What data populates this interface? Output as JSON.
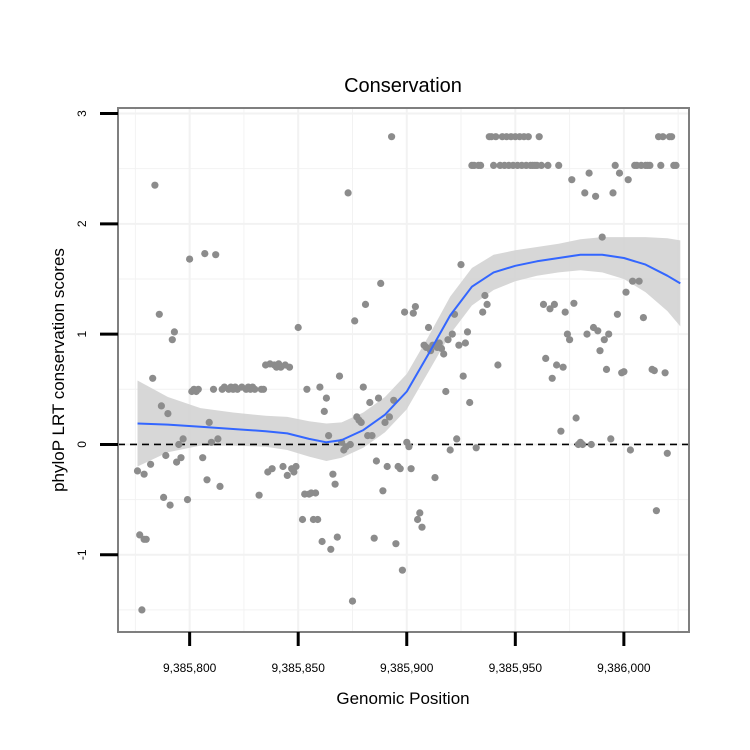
{
  "chart_data": {
    "type": "scatter",
    "title": "Conservation",
    "xlabel": "Genomic Position",
    "ylabel": "phyloP LRT conservation scores",
    "xlim": [
      9385767,
      9386030
    ],
    "ylim": [
      -1.7,
      3.05
    ],
    "x_ticks": [
      9385800,
      9385850,
      9385900,
      9385950,
      9386000
    ],
    "x_tick_labels": [
      "9,385,800",
      "9,385,850",
      "9,385,900",
      "9,385,950",
      "9,386,000"
    ],
    "y_ticks": [
      -1,
      0,
      1,
      2,
      3
    ],
    "y_tick_labels": [
      "-1",
      "0",
      "1",
      "2",
      "3"
    ],
    "reference_line": {
      "y": 0,
      "style": "dashed"
    },
    "colors": {
      "points": "#8c8c8c",
      "smooth": "#3366ff",
      "band": "#d3d3d3",
      "frame": "#7f7f7f",
      "grid": "#f2f2f2"
    },
    "points": [
      [
        9385776,
        -0.24
      ],
      [
        9385777,
        -0.82
      ],
      [
        9385779,
        -0.86
      ],
      [
        9385780,
        -0.86
      ],
      [
        9385778,
        -1.5
      ],
      [
        9385779,
        -0.27
      ],
      [
        9385782,
        -0.18
      ],
      [
        9385783,
        0.6
      ],
      [
        9385784,
        2.35
      ],
      [
        9385786,
        1.18
      ],
      [
        9385787,
        0.35
      ],
      [
        9385788,
        -0.48
      ],
      [
        9385789,
        -0.1
      ],
      [
        9385790,
        0.28
      ],
      [
        9385791,
        -0.55
      ],
      [
        9385792,
        0.95
      ],
      [
        9385793,
        1.02
      ],
      [
        9385794,
        -0.16
      ],
      [
        9385795,
        0.0
      ],
      [
        9385796,
        -0.12
      ],
      [
        9385797,
        0.05
      ],
      [
        9385799,
        -0.5
      ],
      [
        9385800,
        1.68
      ],
      [
        9385801,
        0.48
      ],
      [
        9385802,
        0.5
      ],
      [
        9385803,
        0.48
      ],
      [
        9385804,
        0.5
      ],
      [
        9385806,
        -0.12
      ],
      [
        9385807,
        1.73
      ],
      [
        9385808,
        -0.32
      ],
      [
        9385809,
        0.2
      ],
      [
        9385810,
        0.02
      ],
      [
        9385811,
        0.5
      ],
      [
        9385812,
        1.72
      ],
      [
        9385813,
        0.05
      ],
      [
        9385814,
        -0.38
      ],
      [
        9385815,
        0.5
      ],
      [
        9385816,
        0.52
      ],
      [
        9385818,
        0.5
      ],
      [
        9385819,
        0.52
      ],
      [
        9385820,
        0.5
      ],
      [
        9385821,
        0.52
      ],
      [
        9385822,
        0.5
      ],
      [
        9385824,
        0.52
      ],
      [
        9385826,
        0.5
      ],
      [
        9385827,
        0.52
      ],
      [
        9385828,
        0.5
      ],
      [
        9385829,
        0.52
      ],
      [
        9385830,
        0.5
      ],
      [
        9385832,
        -0.46
      ],
      [
        9385833,
        0.5
      ],
      [
        9385834,
        0.5
      ],
      [
        9385835,
        0.72
      ],
      [
        9385836,
        -0.25
      ],
      [
        9385837,
        0.73
      ],
      [
        9385838,
        -0.22
      ],
      [
        9385839,
        0.72
      ],
      [
        9385840,
        0.7
      ],
      [
        9385841,
        0.73
      ],
      [
        9385842,
        0.7
      ],
      [
        9385843,
        -0.2
      ],
      [
        9385844,
        0.72
      ],
      [
        9385845,
        -0.28
      ],
      [
        9385846,
        0.7
      ],
      [
        9385847,
        -0.22
      ],
      [
        9385848,
        -0.25
      ],
      [
        9385849,
        -0.2
      ],
      [
        9385850,
        1.06
      ],
      [
        9385852,
        -0.68
      ],
      [
        9385853,
        -0.45
      ],
      [
        9385854,
        0.5
      ],
      [
        9385855,
        -0.45
      ],
      [
        9385856,
        -0.44
      ],
      [
        9385857,
        -0.68
      ],
      [
        9385858,
        -0.44
      ],
      [
        9385859,
        -0.68
      ],
      [
        9385860,
        0.52
      ],
      [
        9385861,
        -0.88
      ],
      [
        9385862,
        0.3
      ],
      [
        9385863,
        0.42
      ],
      [
        9385864,
        0.08
      ],
      [
        9385865,
        -0.95
      ],
      [
        9385866,
        -0.27
      ],
      [
        9385867,
        -0.36
      ],
      [
        9385868,
        -0.84
      ],
      [
        9385869,
        0.62
      ],
      [
        9385870,
        0.02
      ],
      [
        9385871,
        -0.05
      ],
      [
        9385872,
        -0.02
      ],
      [
        9385873,
        2.28
      ],
      [
        9385874,
        0.0
      ],
      [
        9385875,
        -1.42
      ],
      [
        9385876,
        1.12
      ],
      [
        9385877,
        0.25
      ],
      [
        9385878,
        0.22
      ],
      [
        9385879,
        0.2
      ],
      [
        9385880,
        0.52
      ],
      [
        9385881,
        1.27
      ],
      [
        9385882,
        0.08
      ],
      [
        9385883,
        0.38
      ],
      [
        9385884,
        0.08
      ],
      [
        9385885,
        -0.85
      ],
      [
        9385886,
        -0.15
      ],
      [
        9385887,
        0.42
      ],
      [
        9385888,
        1.46
      ],
      [
        9385889,
        -0.42
      ],
      [
        9385890,
        0.2
      ],
      [
        9385891,
        -0.2
      ],
      [
        9385892,
        0.25
      ],
      [
        9385893,
        2.79
      ],
      [
        9385894,
        0.4
      ],
      [
        9385895,
        -0.9
      ],
      [
        9385896,
        -0.2
      ],
      [
        9385897,
        -0.22
      ],
      [
        9385898,
        -1.14
      ],
      [
        9385899,
        1.2
      ],
      [
        9385900,
        0.02
      ],
      [
        9385901,
        -0.02
      ],
      [
        9385902,
        -0.22
      ],
      [
        9385903,
        1.19
      ],
      [
        9385904,
        1.25
      ],
      [
        9385905,
        -0.68
      ],
      [
        9385906,
        -0.62
      ],
      [
        9385907,
        -0.75
      ],
      [
        9385908,
        0.9
      ],
      [
        9385909,
        0.88
      ],
      [
        9385910,
        1.06
      ],
      [
        9385911,
        0.85
      ],
      [
        9385912,
        0.9
      ],
      [
        9385913,
        -0.3
      ],
      [
        9385914,
        0.88
      ],
      [
        9385915,
        0.92
      ],
      [
        9385916,
        0.87
      ],
      [
        9385917,
        0.82
      ],
      [
        9385918,
        0.48
      ],
      [
        9385919,
        0.95
      ],
      [
        9385920,
        -0.05
      ],
      [
        9385921,
        1.0
      ],
      [
        9385922,
        1.18
      ],
      [
        9385923,
        0.05
      ],
      [
        9385924,
        0.9
      ],
      [
        9385925,
        1.63
      ],
      [
        9385926,
        0.62
      ],
      [
        9385927,
        0.92
      ],
      [
        9385928,
        1.02
      ],
      [
        9385929,
        0.38
      ],
      [
        9385930,
        2.53
      ],
      [
        9385931,
        2.53
      ],
      [
        9385932,
        -0.03
      ],
      [
        9385933,
        2.53
      ],
      [
        9385934,
        2.53
      ],
      [
        9385935,
        1.2
      ],
      [
        9385936,
        1.35
      ],
      [
        9385937,
        1.27
      ],
      [
        9385938,
        2.79
      ],
      [
        9385939,
        2.79
      ],
      [
        9385940,
        2.53
      ],
      [
        9385941,
        2.79
      ],
      [
        9385942,
        0.72
      ],
      [
        9385943,
        2.53
      ],
      [
        9385944,
        2.79
      ],
      [
        9385945,
        2.53
      ],
      [
        9385946,
        2.79
      ],
      [
        9385947,
        2.53
      ],
      [
        9385948,
        2.79
      ],
      [
        9385949,
        2.53
      ],
      [
        9385950,
        2.79
      ],
      [
        9385951,
        2.53
      ],
      [
        9385952,
        2.79
      ],
      [
        9385953,
        2.53
      ],
      [
        9385954,
        2.79
      ],
      [
        9385955,
        2.53
      ],
      [
        9385956,
        2.79
      ],
      [
        9385957,
        2.53
      ],
      [
        9385958,
        2.53
      ],
      [
        9385959,
        2.53
      ],
      [
        9385960,
        2.53
      ],
      [
        9385961,
        2.79
      ],
      [
        9385962,
        2.53
      ],
      [
        9385963,
        1.27
      ],
      [
        9385964,
        0.78
      ],
      [
        9385965,
        2.53
      ],
      [
        9385966,
        1.23
      ],
      [
        9385967,
        0.6
      ],
      [
        9385968,
        1.27
      ],
      [
        9385969,
        0.72
      ],
      [
        9385970,
        2.53
      ],
      [
        9385971,
        0.12
      ],
      [
        9385972,
        0.7
      ],
      [
        9385973,
        1.2
      ],
      [
        9385974,
        1.0
      ],
      [
        9385975,
        0.95
      ],
      [
        9385976,
        2.4
      ],
      [
        9385977,
        1.28
      ],
      [
        9385978,
        0.24
      ],
      [
        9385979,
        0.0
      ],
      [
        9385980,
        0.02
      ],
      [
        9385981,
        0.0
      ],
      [
        9385982,
        2.28
      ],
      [
        9385983,
        1.0
      ],
      [
        9385984,
        2.46
      ],
      [
        9385985,
        0.0
      ],
      [
        9385986,
        1.06
      ],
      [
        9385987,
        2.25
      ],
      [
        9385988,
        1.03
      ],
      [
        9385989,
        0.85
      ],
      [
        9385990,
        1.88
      ],
      [
        9385991,
        0.95
      ],
      [
        9385992,
        0.68
      ],
      [
        9385993,
        1.0
      ],
      [
        9385994,
        0.05
      ],
      [
        9385995,
        2.28
      ],
      [
        9385996,
        2.53
      ],
      [
        9385997,
        1.18
      ],
      [
        9385998,
        2.46
      ],
      [
        9385999,
        0.65
      ],
      [
        9386000,
        0.66
      ],
      [
        9386001,
        1.38
      ],
      [
        9386002,
        2.4
      ],
      [
        9386003,
        -0.05
      ],
      [
        9386004,
        1.48
      ],
      [
        9386005,
        2.53
      ],
      [
        9386006,
        2.53
      ],
      [
        9386007,
        1.48
      ],
      [
        9386008,
        2.53
      ],
      [
        9386009,
        1.15
      ],
      [
        9386010,
        2.53
      ],
      [
        9386011,
        2.53
      ],
      [
        9386012,
        2.53
      ],
      [
        9386013,
        0.68
      ],
      [
        9386014,
        0.67
      ],
      [
        9386015,
        -0.6
      ],
      [
        9386016,
        2.79
      ],
      [
        9386017,
        2.53
      ],
      [
        9386018,
        2.79
      ],
      [
        9386019,
        0.65
      ],
      [
        9386020,
        -0.08
      ],
      [
        9386021,
        2.79
      ],
      [
        9386022,
        2.79
      ],
      [
        9386023,
        2.53
      ],
      [
        9386024,
        2.53
      ]
    ],
    "smooth": [
      {
        "x": 9385776,
        "y": 0.19,
        "lo": -0.2,
        "hi": 0.58
      },
      {
        "x": 9385790,
        "y": 0.18,
        "lo": -0.07,
        "hi": 0.43
      },
      {
        "x": 9385805,
        "y": 0.16,
        "lo": -0.01,
        "hi": 0.33
      },
      {
        "x": 9385820,
        "y": 0.14,
        "lo": -0.01,
        "hi": 0.29
      },
      {
        "x": 9385835,
        "y": 0.12,
        "lo": -0.02,
        "hi": 0.26
      },
      {
        "x": 9385845,
        "y": 0.1,
        "lo": -0.05,
        "hi": 0.25
      },
      {
        "x": 9385855,
        "y": 0.05,
        "lo": -0.11,
        "hi": 0.21
      },
      {
        "x": 9385863,
        "y": 0.02,
        "lo": -0.15,
        "hi": 0.19
      },
      {
        "x": 9385870,
        "y": 0.04,
        "lo": -0.12,
        "hi": 0.2
      },
      {
        "x": 9385880,
        "y": 0.13,
        "lo": -0.03,
        "hi": 0.29
      },
      {
        "x": 9385890,
        "y": 0.27,
        "lo": 0.11,
        "hi": 0.43
      },
      {
        "x": 9385900,
        "y": 0.48,
        "lo": 0.32,
        "hi": 0.64
      },
      {
        "x": 9385910,
        "y": 0.82,
        "lo": 0.66,
        "hi": 0.98
      },
      {
        "x": 9385920,
        "y": 1.17,
        "lo": 1.0,
        "hi": 1.34
      },
      {
        "x": 9385930,
        "y": 1.43,
        "lo": 1.26,
        "hi": 1.6
      },
      {
        "x": 9385940,
        "y": 1.56,
        "lo": 1.4,
        "hi": 1.72
      },
      {
        "x": 9385950,
        "y": 1.62,
        "lo": 1.48,
        "hi": 1.76
      },
      {
        "x": 9385960,
        "y": 1.66,
        "lo": 1.53,
        "hi": 1.79
      },
      {
        "x": 9385970,
        "y": 1.69,
        "lo": 1.56,
        "hi": 1.82
      },
      {
        "x": 9385980,
        "y": 1.72,
        "lo": 1.58,
        "hi": 1.86
      },
      {
        "x": 9385990,
        "y": 1.72,
        "lo": 1.56,
        "hi": 1.88
      },
      {
        "x": 9386000,
        "y": 1.69,
        "lo": 1.5,
        "hi": 1.88
      },
      {
        "x": 9386010,
        "y": 1.63,
        "lo": 1.38,
        "hi": 1.88
      },
      {
        "x": 9386020,
        "y": 1.53,
        "lo": 1.21,
        "hi": 1.87
      },
      {
        "x": 9386026,
        "y": 1.46,
        "lo": 1.07,
        "hi": 1.85
      }
    ]
  }
}
